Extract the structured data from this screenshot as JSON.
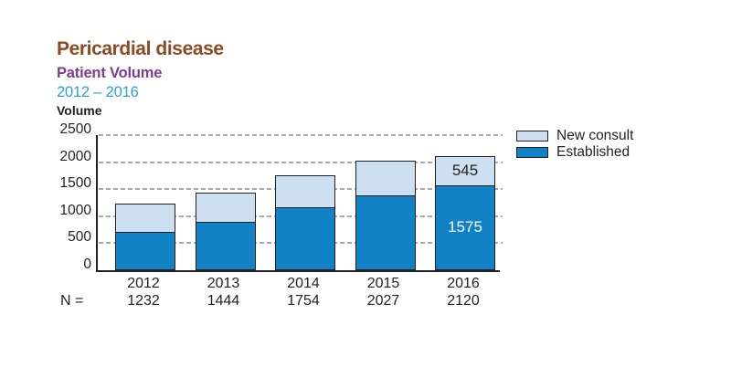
{
  "header": {
    "title": "Pericardial disease",
    "subtitle": "Patient Volume",
    "range": "2012 – 2016"
  },
  "colors": {
    "title_brown": "#8B4A21",
    "subtitle_purple": "#7C3E90",
    "range_blue": "#2E9FD8",
    "established": "#1182C5",
    "new_consult": "#CDE0F2",
    "bar_border": "#231F20",
    "gridline_gray": "#A7A9AC",
    "text_dark": "#231F20"
  },
  "chart_data": {
    "type": "bar",
    "stacked": true,
    "title": "Pericardial disease — Patient Volume 2012 – 2016",
    "ylabel": "Volume",
    "xlabel": "",
    "categories": [
      "2012",
      "2013",
      "2014",
      "2015",
      "2016"
    ],
    "series": [
      {
        "name": "Established",
        "color_key": "established",
        "values": [
          720,
          905,
          1170,
          1395,
          1575
        ],
        "value_labels": [
          "",
          "",
          "",
          "",
          "1575"
        ]
      },
      {
        "name": "New consult",
        "color_key": "new_consult",
        "values": [
          512,
          539,
          584,
          632,
          545
        ],
        "value_labels": [
          "",
          "",
          "",
          "",
          "545"
        ]
      }
    ],
    "totals": [
      1232,
      1444,
      1754,
      2027,
      2120
    ],
    "ylim": [
      0,
      2500
    ],
    "yticks": [
      0,
      500,
      1000,
      1500,
      2000,
      2500
    ],
    "grid": "dashed horizontal",
    "legend_position": "top-right",
    "n_row": {
      "label": "N =",
      "values": [
        "1232",
        "1444",
        "1754",
        "2027",
        "2120"
      ]
    }
  },
  "legend": {
    "items": [
      {
        "label": "New consult",
        "color_key": "new_consult"
      },
      {
        "label": "Established",
        "color_key": "established"
      }
    ]
  }
}
